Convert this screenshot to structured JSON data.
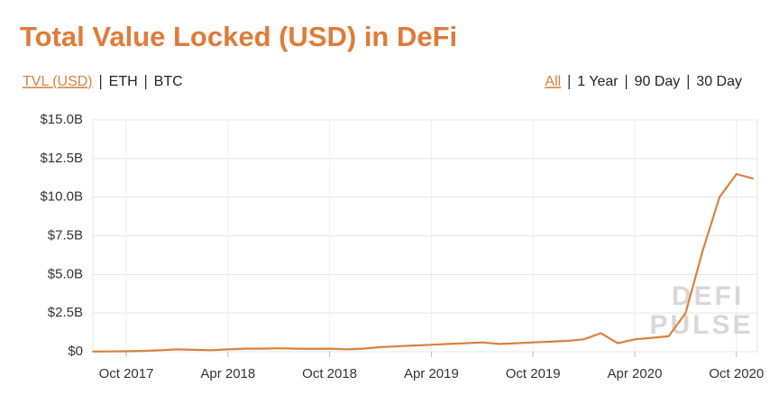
{
  "unit_tabs": [
    "TVL (USD)",
    "ETH",
    "BTC"
  ],
  "range_tabs": [
    "All",
    "1 Year",
    "90 Day",
    "30 Day"
  ],
  "watermark": [
    "DEFI",
    "PULSE"
  ],
  "chart_data": {
    "type": "line",
    "title": "Total Value Locked (USD) in DeFi",
    "x": [
      "2017-08",
      "2017-09",
      "2017-10",
      "2017-11",
      "2017-12",
      "2018-01",
      "2018-02",
      "2018-03",
      "2018-04",
      "2018-05",
      "2018-06",
      "2018-07",
      "2018-08",
      "2018-09",
      "2018-10",
      "2018-11",
      "2018-12",
      "2019-01",
      "2019-02",
      "2019-03",
      "2019-04",
      "2019-05",
      "2019-06",
      "2019-07",
      "2019-08",
      "2019-09",
      "2019-10",
      "2019-11",
      "2019-12",
      "2020-01",
      "2020-02",
      "2020-03",
      "2020-04",
      "2020-05",
      "2020-06",
      "2020-07",
      "2020-08",
      "2020-09",
      "2020-10",
      "2020-11"
    ],
    "series": [
      {
        "name": "TVL (USD)",
        "color": "#d9823f",
        "values": [
          10000000,
          20000000,
          30000000,
          50000000,
          100000000,
          150000000,
          120000000,
          100000000,
          150000000,
          200000000,
          200000000,
          220000000,
          200000000,
          180000000,
          200000000,
          150000000,
          200000000,
          300000000,
          350000000,
          400000000,
          450000000,
          500000000,
          550000000,
          600000000,
          500000000,
          550000000,
          600000000,
          650000000,
          700000000,
          800000000,
          1200000000,
          550000000,
          800000000,
          900000000,
          1000000000,
          2500000000,
          6500000000,
          10000000000,
          11500000000,
          11200000000
        ]
      }
    ],
    "xlim": [
      "2017-08",
      "2020-11"
    ],
    "xticks": [
      {
        "value": "2017-10",
        "label": "Oct 2017"
      },
      {
        "value": "2018-04",
        "label": "Apr 2018"
      },
      {
        "value": "2018-10",
        "label": "Oct 2018"
      },
      {
        "value": "2019-04",
        "label": "Apr 2019"
      },
      {
        "value": "2019-10",
        "label": "Oct 2019"
      },
      {
        "value": "2020-04",
        "label": "Apr 2020"
      },
      {
        "value": "2020-10",
        "label": "Oct 2020"
      }
    ],
    "ylim": [
      0,
      15000000000
    ],
    "yticks": [
      {
        "value": 0,
        "label": "$0"
      },
      {
        "value": 2500000000,
        "label": "$2.5B"
      },
      {
        "value": 5000000000,
        "label": "$5.0B"
      },
      {
        "value": 7500000000,
        "label": "$7.5B"
      },
      {
        "value": 10000000000,
        "label": "$10.0B"
      },
      {
        "value": 12500000000,
        "label": "$12.5B"
      },
      {
        "value": 15000000000,
        "label": "$15.0B"
      }
    ],
    "grid": true
  }
}
